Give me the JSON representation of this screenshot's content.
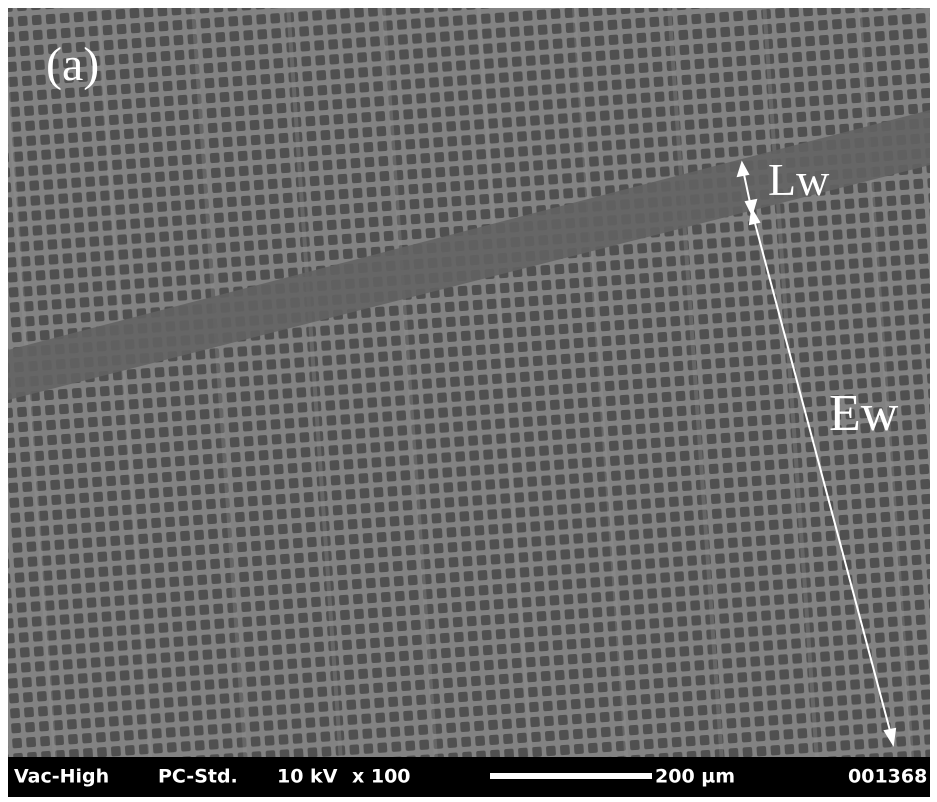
{
  "panel_label": "(a)",
  "annotations": {
    "lw": "Lw",
    "ew": "Ew"
  },
  "info_bar": {
    "vacuum": "Vac-High",
    "mode": "PC-Std.",
    "voltage": "10 kV",
    "magnification": "x 100",
    "scale_bar": "200 µm",
    "image_number": "001368"
  }
}
